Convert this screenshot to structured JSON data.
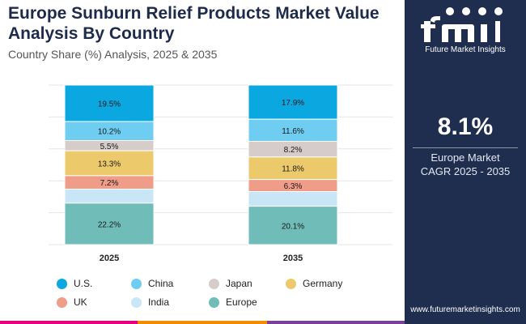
{
  "header": {
    "title": "Europe Sunburn Relief Products Market Value Analysis By Country",
    "subtitle": "Country Share (%) Analysis, 2025 & 2035"
  },
  "side_panel": {
    "logo_text": "Future Market Insights",
    "cagr_value": "8.1%",
    "cagr_label_line1": "Europe Market",
    "cagr_label_line2": "CAGR 2025 - 2035",
    "website": "www.futuremarketinsights.com"
  },
  "colors": {
    "panel": "#1f2e4f",
    "accent_bar": [
      "#e6007e",
      "#f28c00",
      "#7a3f98"
    ]
  },
  "chart_data": {
    "type": "bar",
    "stacked": true,
    "categories": [
      "2025",
      "2035"
    ],
    "series": [
      {
        "name": "U.S.",
        "values": [
          19.5,
          17.9
        ],
        "color": "#0aa7e0"
      },
      {
        "name": "China",
        "values": [
          10.2,
          11.6
        ],
        "color": "#6fcdf2"
      },
      {
        "name": "Japan",
        "values": [
          5.5,
          8.2
        ],
        "color": "#d6ccc9"
      },
      {
        "name": "Germany",
        "values": [
          13.3,
          11.8
        ],
        "color": "#ecc96a"
      },
      {
        "name": "UK",
        "values": [
          7.2,
          6.3
        ],
        "color": "#ef9c88"
      },
      {
        "name": "India",
        "values": [
          7.5,
          7.7
        ],
        "color": "#c8e6f5"
      },
      {
        "name": "Europe",
        "values": [
          22.2,
          20.1
        ],
        "color": "#6fbcb8"
      }
    ],
    "data_labels": [
      [
        "19.5%",
        "10.2%",
        "5.5%",
        "13.3%",
        "7.2%",
        "",
        "22.2%"
      ],
      [
        "17.9%",
        "11.6%",
        "8.2%",
        "11.8%",
        "6.3%",
        "",
        "20.1%"
      ]
    ],
    "grid": true,
    "legend_position": "bottom"
  }
}
